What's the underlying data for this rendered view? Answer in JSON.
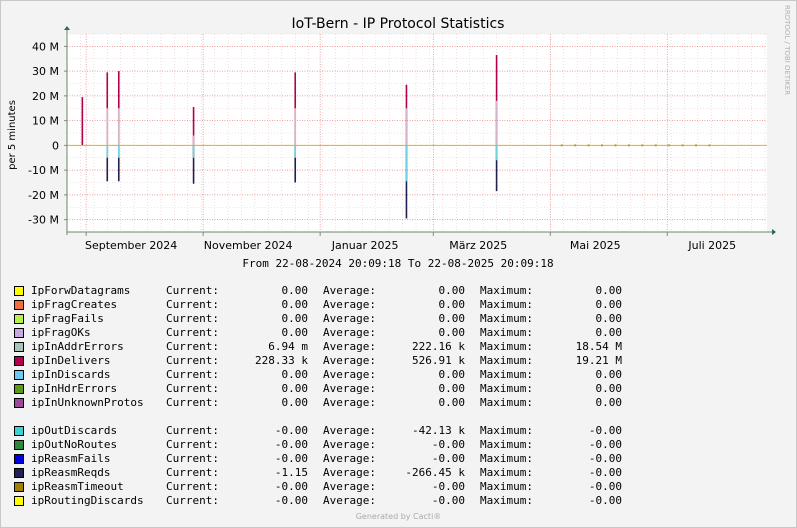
{
  "chart_data": {
    "type": "area",
    "title": "IoT-Bern - IP Protocol Statistics",
    "ylabel": "per 5 minutes",
    "watermark": "RRDTOOL / TOBI OETIKER",
    "subtitle": "From 22-08-2024 20:09:18 To 22-08-2025 20:09:18",
    "x_range": [
      "2024-08-22",
      "2025-08-22"
    ],
    "ylim": [
      -35000000,
      45000000
    ],
    "y_ticks": [
      {
        "v": 40000000,
        "label": "40 M"
      },
      {
        "v": 30000000,
        "label": "30 M"
      },
      {
        "v": 20000000,
        "label": "20 M"
      },
      {
        "v": 10000000,
        "label": "10 M"
      },
      {
        "v": 0,
        "label": "0"
      },
      {
        "v": -10000000,
        "label": "-10 M"
      },
      {
        "v": -20000000,
        "label": "-20 M"
      },
      {
        "v": -30000000,
        "label": "-30 M"
      }
    ],
    "x_ticks": [
      {
        "date": "2024-09-01",
        "label": "September 2024"
      },
      {
        "date": "2024-11-01",
        "label": "November 2024"
      },
      {
        "date": "2025-01-01",
        "label": "Januar 2025"
      },
      {
        "date": "2025-03-01",
        "label": "März 2025"
      },
      {
        "date": "2025-05-01",
        "label": "Mai 2025"
      },
      {
        "date": "2025-07-01",
        "label": "Juli 2025"
      }
    ],
    "spikes": [
      {
        "date": "2024-08-30",
        "in_top": 19500000,
        "in_mid": 0,
        "out_bottom": 0,
        "out_mid": 0
      },
      {
        "date": "2024-09-12",
        "in_top": 29500000,
        "in_mid": 15000000,
        "out_bottom": -14500000,
        "out_mid": -5000000
      },
      {
        "date": "2024-09-18",
        "in_top": 30000000,
        "in_mid": 15000000,
        "out_bottom": -14500000,
        "out_mid": -5000000
      },
      {
        "date": "2024-10-27",
        "in_top": 15500000,
        "in_mid": 4000000,
        "out_bottom": -15500000,
        "out_mid": -5000000
      },
      {
        "date": "2024-12-19",
        "in_top": 29500000,
        "in_mid": 15000000,
        "out_bottom": -15000000,
        "out_mid": -5000000
      },
      {
        "date": "2025-02-15",
        "in_top": 24500000,
        "in_mid": 15000000,
        "out_bottom": -29500000,
        "out_mid": -14500000
      },
      {
        "date": "2025-04-03",
        "in_top": 36500000,
        "in_mid": 18000000,
        "out_bottom": -18500000,
        "out_mid": -6000000
      }
    ],
    "flat_markers": [
      "2025-05-07",
      "2025-05-14",
      "2025-05-21",
      "2025-05-28",
      "2025-06-04",
      "2025-06-11",
      "2025-06-18",
      "2025-06-25",
      "2025-07-02",
      "2025-07-09",
      "2025-07-16",
      "2025-07-23"
    ],
    "colors": {
      "in_top": "#b2004c",
      "in_mid": "#d8b4c8",
      "out_mid": "#6dd3e0",
      "out_bottom": "#22204f",
      "zero_line": "#e8b400"
    }
  },
  "legend": {
    "current_label": "Current:",
    "average_label": "Average:",
    "maximum_label": "Maximum:",
    "group1": [
      {
        "name": "IpForwDatagrams",
        "color": "#ffff00",
        "current": "0.00",
        "average": "0.00",
        "maximum": "0.00"
      },
      {
        "name": "ipFragCreates",
        "color": "#f26d3d",
        "current": "0.00",
        "average": "0.00",
        "maximum": "0.00"
      },
      {
        "name": "ipFragFails",
        "color": "#b8f04a",
        "current": "0.00",
        "average": "0.00",
        "maximum": "0.00"
      },
      {
        "name": "ipFragOKs",
        "color": "#c8a8e0",
        "current": "0.00",
        "average": "0.00",
        "maximum": "0.00"
      },
      {
        "name": "ipInAddrErrors",
        "color": "#a8c4b8",
        "current": "6.94 m",
        "average": "222.16 k",
        "maximum": "18.54 M"
      },
      {
        "name": "ipInDelivers",
        "color": "#b2004c",
        "current": "228.33 k",
        "average": "526.91 k",
        "maximum": "19.21 M"
      },
      {
        "name": "ipInDiscards",
        "color": "#6ec8f0",
        "current": "0.00",
        "average": "0.00",
        "maximum": "0.00"
      },
      {
        "name": "ipInHdrErrors",
        "color": "#5a9a14",
        "current": "0.00",
        "average": "0.00",
        "maximum": "0.00"
      },
      {
        "name": "ipInUnknownProtos",
        "color": "#9a4a9a",
        "current": "0.00",
        "average": "0.00",
        "maximum": "0.00"
      }
    ],
    "group2": [
      {
        "name": "ipOutDiscards",
        "color": "#40d0d0",
        "current": "-0.00",
        "average": "-42.13 k",
        "maximum": "-0.00"
      },
      {
        "name": "ipOutNoRoutes",
        "color": "#2a8a3a",
        "current": "-0.00",
        "average": "-0.00",
        "maximum": "-0.00"
      },
      {
        "name": "ipReasmFails",
        "color": "#0000e0",
        "current": "-0.00",
        "average": "-0.00",
        "maximum": "-0.00"
      },
      {
        "name": "ipReasmReqds",
        "color": "#22204f",
        "current": "-1.15",
        "average": "-266.45 k",
        "maximum": "-0.00"
      },
      {
        "name": "ipReasmTimeout",
        "color": "#a08000",
        "current": "-0.00",
        "average": "-0.00",
        "maximum": "-0.00"
      },
      {
        "name": "ipRoutingDiscards",
        "color": "#ffff00",
        "current": "-0.00",
        "average": "-0.00",
        "maximum": "-0.00"
      }
    ]
  },
  "footer": "Generated by Cacti®"
}
